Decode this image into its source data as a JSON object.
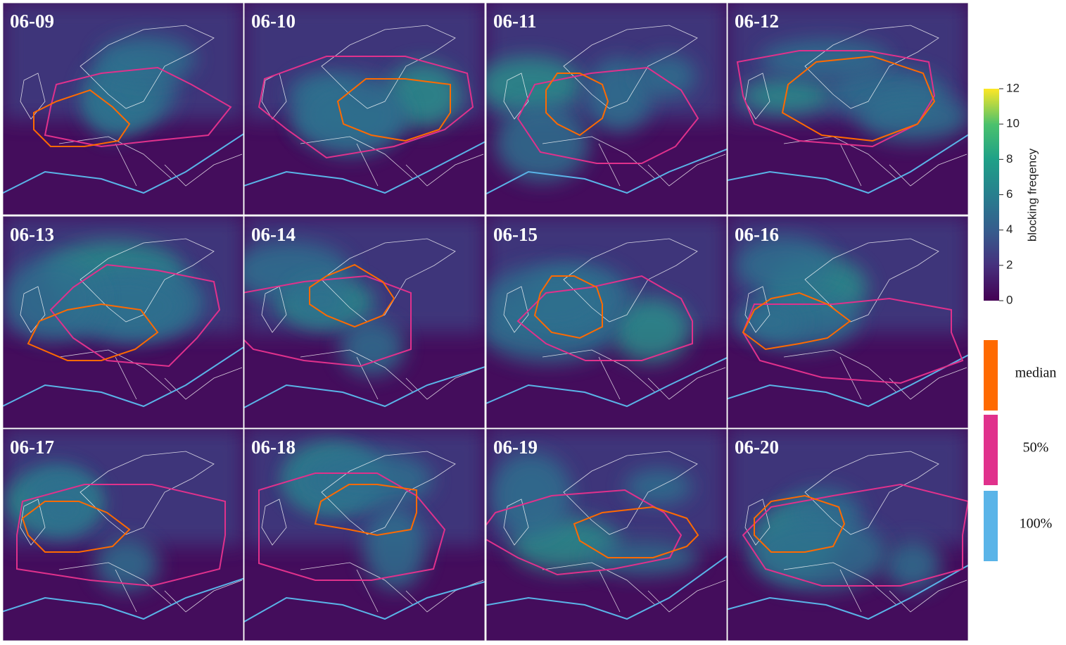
{
  "panels": [
    "06-09",
    "06-10",
    "06-11",
    "06-12",
    "06-13",
    "06-14",
    "06-15",
    "06-16",
    "06-17",
    "06-18",
    "06-19",
    "06-20"
  ],
  "colorbar": {
    "label": "blocking freqency",
    "lim": [
      0,
      12
    ],
    "ticks": [
      0,
      2,
      4,
      6,
      8,
      10,
      12
    ]
  },
  "legend": [
    {
      "name": "median",
      "color": "#ff6a00"
    },
    {
      "name": "50%",
      "color": "#e0318c"
    },
    {
      "name": "100%",
      "color": "#5ab4e8"
    }
  ]
}
